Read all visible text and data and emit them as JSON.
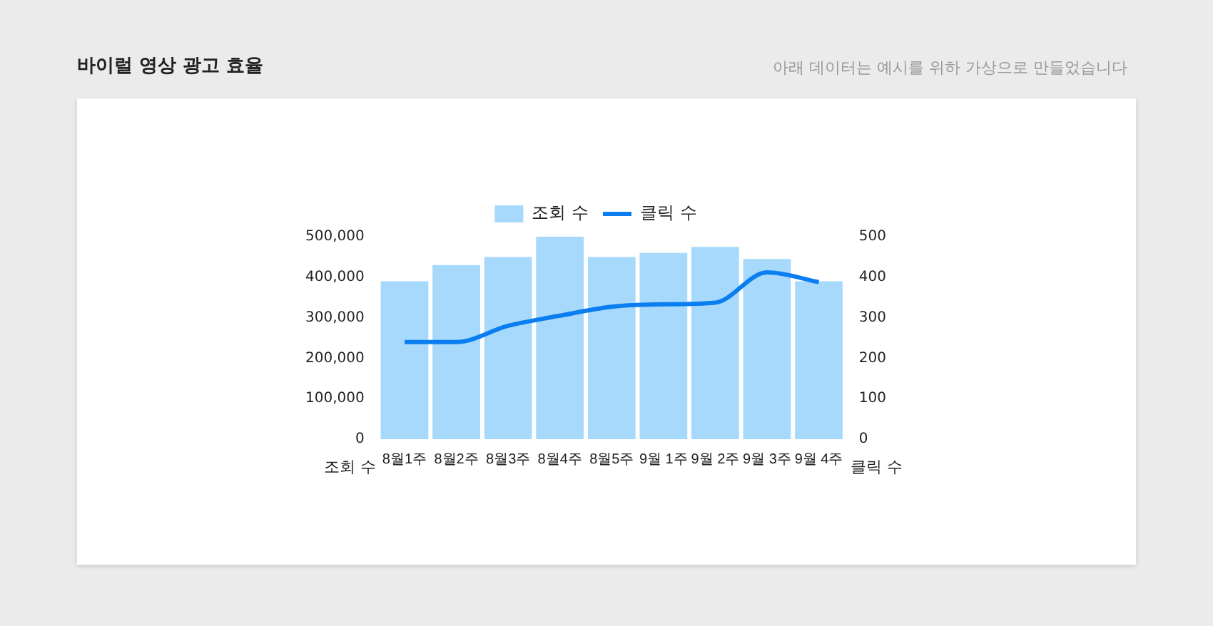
{
  "chart_data": {
    "type": "bar",
    "title": "바이럴 영상 광고 효율",
    "annotations": [
      "아래 데이터는 예시를 위하 가상으로 만들었습니다"
    ],
    "ylabel": "조회 수",
    "y2label": "클릭 수",
    "categories": [
      "8월1주",
      "8월2주",
      "8월3주",
      "8월4주",
      "8월5주",
      "9월 1주",
      "9월 2주",
      "9월 3주",
      "9월 4주"
    ],
    "series": [
      {
        "name": "조회 수",
        "color": "#a6d9fb",
        "values": [
          390000,
          430000,
          450000,
          500000,
          450000,
          460000,
          475000,
          445000,
          390000
        ]
      },
      {
        "name": "클릭 수",
        "type": "line",
        "axis": "y2",
        "color": "#0a7ef0",
        "values": [
          240,
          240,
          280,
          305,
          327,
          333,
          337,
          412,
          388
        ]
      }
    ],
    "ylim": [
      0,
      500000
    ],
    "yticks": [
      {
        "value": 0,
        "label": "0"
      },
      {
        "value": 100000,
        "label": "100,000"
      },
      {
        "value": 200000,
        "label": "200,000"
      },
      {
        "value": 300000,
        "label": "300,000"
      },
      {
        "value": 400000,
        "label": "400,000"
      },
      {
        "value": 500000,
        "label": "500,000"
      }
    ],
    "y2lim": [
      0,
      500
    ],
    "y2ticks": [
      0,
      100,
      200,
      300,
      400,
      500
    ],
    "grid": false,
    "legend": "top",
    "marker": "none",
    "line_style": "solid"
  }
}
